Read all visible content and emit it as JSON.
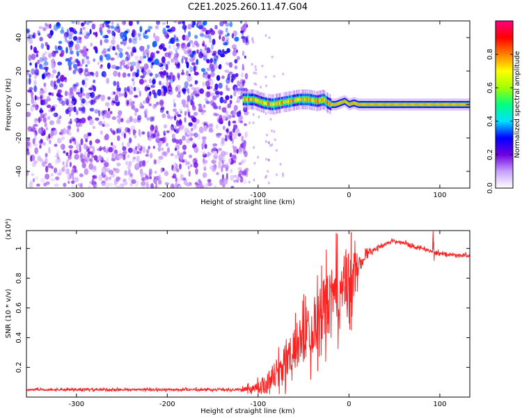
{
  "title": "C2E1.2025.260.11.47.G04",
  "chart_data": [
    {
      "type": "heatmap",
      "xlabel": "Height of straight line (km)",
      "ylabel": "Frequency (Hz)",
      "xlim": [
        -355,
        133
      ],
      "ylim": [
        -50,
        50
      ],
      "x_ticks": [
        -300,
        -200,
        -100,
        0,
        100
      ],
      "x_tick_labels": [
        "-300",
        "-200",
        "-100",
        "0",
        "100"
      ],
      "y_ticks": [
        -40,
        -20,
        0,
        20,
        40
      ],
      "y_tick_labels": [
        "-40",
        "-20",
        "0",
        "20",
        "40"
      ],
      "grid": false,
      "colorbar": {
        "label": "Normalized spectral amplitude",
        "range": [
          0,
          1
        ],
        "ticks": [
          0.0,
          0.2,
          0.4,
          0.6,
          0.8
        ],
        "tick_labels": [
          "0.0",
          "0.2",
          "0.4",
          "0.6",
          "0.8"
        ],
        "colors": [
          "#ffffff",
          "#c8a0ff",
          "#7000e0",
          "#0000ff",
          "#00e0ff",
          "#00ff80",
          "#a0ff00",
          "#ffff00",
          "#ff8000",
          "#ff0000",
          "#ff0080"
        ]
      },
      "regions": [
        {
          "name": "noise",
          "x_range": [
            -355,
            -112
          ],
          "freq_range": [
            -50,
            50
          ],
          "amplitude": 0.3
        },
        {
          "name": "signal-trace",
          "x_range": [
            -117,
            133
          ],
          "amplitude": 0.75,
          "track": {
            "x": [
              -117,
              -105,
              -95,
              -85,
              -75,
              -65,
              -55,
              -45,
              -35,
              -28,
              -24,
              -20,
              -15,
              -10,
              -5,
              0,
              5,
              10,
              20,
              40,
              60,
              80,
              100,
              133
            ],
            "freq": [
              3,
              3,
              1,
              0,
              1,
              2,
              3,
              3,
              2,
              3,
              1,
              0,
              0,
              1,
              2,
              0,
              1,
              0,
              0,
              0,
              0,
              0,
              0,
              0
            ]
          }
        }
      ]
    },
    {
      "type": "line",
      "xlabel": "Height of straight line (km)",
      "ylabel": "SNR (10 * v/v)",
      "y_multiplier": "(x10⁴)",
      "xlim": [
        -355,
        133
      ],
      "ylim": [
        0,
        1.12
      ],
      "x_ticks": [
        -300,
        -200,
        -100,
        0,
        100
      ],
      "x_tick_labels": [
        "-300",
        "-200",
        "-100",
        "0",
        "100"
      ],
      "y_ticks": [
        0.2,
        0.4,
        0.6,
        0.8,
        1
      ],
      "y_tick_labels": [
        "0.2",
        "0.4",
        "0.6",
        "0.8",
        "1"
      ],
      "grid": false,
      "series": [
        {
          "color": "#ff2020",
          "x": [
            -355,
            -120,
            -105,
            -95,
            -85,
            -75,
            -65,
            -55,
            -45,
            -35,
            -25,
            -15,
            -5,
            0,
            5,
            10,
            15,
            20,
            30,
            40,
            50,
            60,
            70,
            80,
            90,
            100,
            110,
            120,
            133
          ],
          "y": [
            0.05,
            0.05,
            0.06,
            0.08,
            0.13,
            0.19,
            0.27,
            0.36,
            0.44,
            0.52,
            0.61,
            0.68,
            0.75,
            0.76,
            0.82,
            0.88,
            0.93,
            0.97,
            1.0,
            1.03,
            1.05,
            1.04,
            1.02,
            1.0,
            0.98,
            0.97,
            0.96,
            0.955,
            0.95
          ],
          "spread": [
            0.01,
            0.01,
            0.04,
            0.08,
            0.12,
            0.15,
            0.18,
            0.22,
            0.25,
            0.28,
            0.3,
            0.3,
            0.3,
            0.32,
            0.25,
            0.12,
            0.05,
            0.03,
            0.02,
            0.015,
            0.015,
            0.015,
            0.015,
            0.015,
            0.015,
            0.015,
            0.015,
            0.015,
            0.015
          ]
        }
      ]
    }
  ]
}
